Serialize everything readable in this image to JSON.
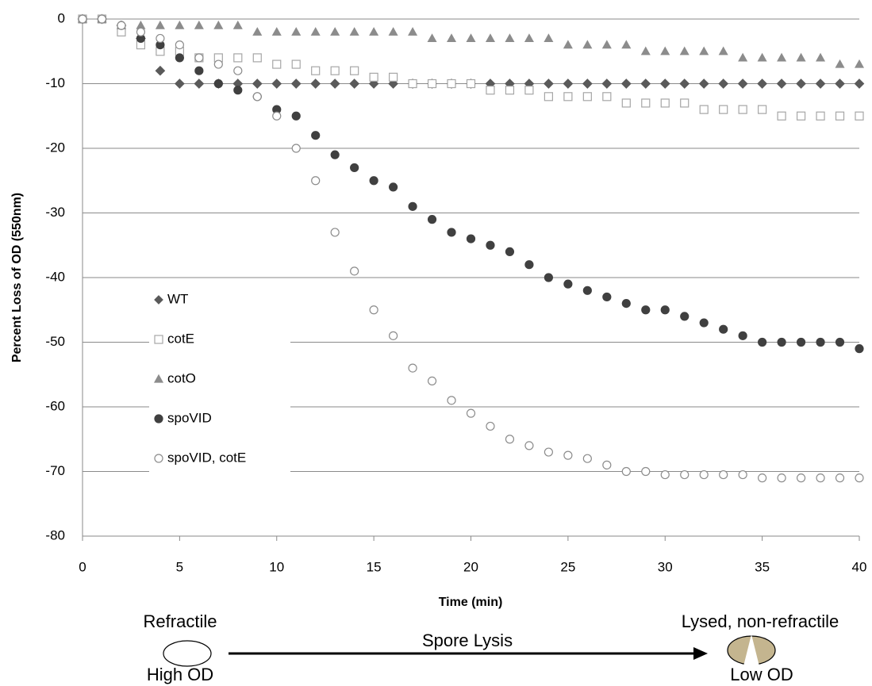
{
  "chart_data": {
    "type": "scatter",
    "xlabel": "Time (min)",
    "ylabel": "Percent Loss of OD (550nm)",
    "x": [
      0,
      1,
      2,
      3,
      4,
      5,
      6,
      7,
      8,
      9,
      10,
      11,
      12,
      13,
      14,
      15,
      16,
      17,
      18,
      19,
      20,
      21,
      22,
      23,
      24,
      25,
      26,
      27,
      28,
      29,
      30,
      31,
      32,
      33,
      34,
      35,
      36,
      37,
      38,
      39,
      40
    ],
    "xlim": [
      0,
      40
    ],
    "xticks": [
      0,
      5,
      10,
      15,
      20,
      25,
      30,
      35,
      40
    ],
    "ylim": [
      -80,
      0
    ],
    "yticks": [
      -80,
      -70,
      -60,
      -50,
      -40,
      -30,
      -20,
      -10,
      0
    ],
    "grid": true,
    "legend": "left",
    "series": [
      {
        "name": "WT",
        "color": "#5a5a5a",
        "marker": "diamond",
        "filled": true,
        "values": [
          0,
          0,
          -1,
          -3,
          -8,
          -10,
          -10,
          -10,
          -10,
          -10,
          -10,
          -10,
          -10,
          -10,
          -10,
          -10,
          -10,
          -10,
          -10,
          -10,
          -10,
          -10,
          -10,
          -10,
          -10,
          -10,
          -10,
          -10,
          -10,
          -10,
          -10,
          -10,
          -10,
          -10,
          -10,
          -10,
          -10,
          -10,
          -10,
          -10,
          -10
        ]
      },
      {
        "name": "cotE",
        "color": "#a6a6a6",
        "marker": "square",
        "filled": false,
        "values": [
          0,
          0,
          -2,
          -4,
          -5,
          -5,
          -6,
          -6,
          -6,
          -6,
          -7,
          -7,
          -8,
          -8,
          -8,
          -9,
          -9,
          -10,
          -10,
          -10,
          -10,
          -11,
          -11,
          -11,
          -12,
          -12,
          -12,
          -12,
          -13,
          -13,
          -13,
          -13,
          -14,
          -14,
          -14,
          -14,
          -15,
          -15,
          -15,
          -15,
          -15
        ]
      },
      {
        "name": "cotO",
        "color": "#8c8c8c",
        "marker": "triangle",
        "filled": true,
        "values": [
          0,
          0,
          -1,
          -1,
          -1,
          -1,
          -1,
          -1,
          -1,
          -2,
          -2,
          -2,
          -2,
          -2,
          -2,
          -2,
          -2,
          -2,
          -3,
          -3,
          -3,
          -3,
          -3,
          -3,
          -3,
          -4,
          -4,
          -4,
          -4,
          -5,
          -5,
          -5,
          -5,
          -5,
          -6,
          -6,
          -6,
          -6,
          -6,
          -7,
          -7
        ]
      },
      {
        "name": "spoVID",
        "color": "#404040",
        "marker": "circle",
        "filled": true,
        "values": [
          0,
          0,
          -1,
          -3,
          -4,
          -6,
          -8,
          -10,
          -11,
          -12,
          -14,
          -15,
          -18,
          -21,
          -23,
          -25,
          -26,
          -29,
          -31,
          -33,
          -34,
          -35,
          -36,
          -38,
          -40,
          -41,
          -42,
          -43,
          -44,
          -45,
          -45,
          -46,
          -47,
          -48,
          -49,
          -50,
          -50,
          -50,
          -50,
          -50,
          -51
        ]
      },
      {
        "name": "spoVID, cotE",
        "color": "#8c8c8c",
        "marker": "circle",
        "filled": false,
        "values": [
          0,
          0,
          -1,
          -2,
          -3,
          -4,
          -6,
          -7,
          -8,
          -12,
          -15,
          -20,
          -25,
          -33,
          -39,
          -45,
          -49,
          -54,
          -56,
          -59,
          -61,
          -63,
          -65,
          -66,
          -67,
          -67.5,
          -68,
          -69,
          -70,
          -70,
          -70.5,
          -70.5,
          -70.5,
          -70.5,
          -70.5,
          -71,
          -71,
          -71,
          -71,
          -71,
          -71
        ]
      }
    ],
    "annotations": [
      "Refractile",
      "High OD",
      "Spore Lysis",
      "Lysed, non-refractile",
      "Low OD"
    ]
  }
}
